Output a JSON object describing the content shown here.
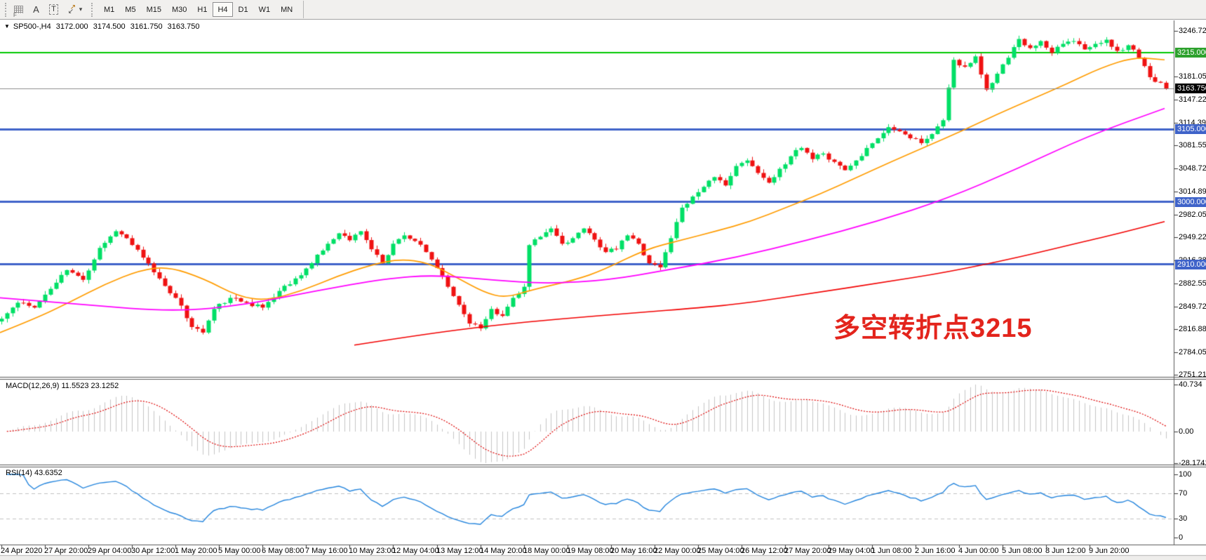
{
  "toolbar": {
    "timeframes": [
      "M1",
      "M5",
      "M15",
      "M30",
      "H1",
      "H4",
      "D1",
      "W1",
      "MN"
    ],
    "active_timeframe": "H4",
    "tool_icons": [
      {
        "name": "grid-f-icon",
        "glyph": "F"
      },
      {
        "name": "text-label-icon",
        "glyph": "A"
      },
      {
        "name": "text-box-icon",
        "glyph": "T"
      },
      {
        "name": "arrows-tool-icon",
        "glyph": "↗↙"
      },
      {
        "name": "dropdown-arrow-icon",
        "glyph": "▾"
      }
    ]
  },
  "chart": {
    "title": {
      "dropdown_glyph": "▼",
      "symbol_period": "SP500-,H4",
      "open": "3172.000",
      "high": "3174.500",
      "low": "3161.750",
      "close": "3163.750"
    },
    "macd_label": {
      "name": "MACD(12,26,9)",
      "main": "11.5523",
      "signal": "23.1252"
    },
    "rsi_label": {
      "name": "RSI(14)",
      "value": "43.6352"
    },
    "annotation": {
      "text": "多空转折点3215",
      "color": "#e3241c"
    }
  },
  "chart_data": {
    "type": "candlestick",
    "symbol": "SP500-",
    "period": "H4",
    "current_bar": {
      "open": 3172.0,
      "high": 3174.5,
      "low": 3161.75,
      "close": 3163.75
    },
    "price_axis": {
      "min": 2751.215,
      "max": 3246.725,
      "ticks": [
        "3246.725",
        "3181.055",
        "3147.225",
        "3114.390",
        "3081.555",
        "3048.720",
        "3014.890",
        "2982.055",
        "2949.220",
        "2916.385",
        "2882.555",
        "2849.720",
        "2816.885",
        "2784.050",
        "2751.215"
      ]
    },
    "time_axis": {
      "labels": [
        "24 Apr 2020",
        "27 Apr 20:00",
        "29 Apr 04:00",
        "30 Apr 12:00",
        "1 May 20:00",
        "5 May 00:00",
        "6 May 08:00",
        "7 May 16:00",
        "10 May 23:00",
        "12 May 04:00",
        "13 May 12:00",
        "14 May 20:00",
        "18 May 00:00",
        "19 May 08:00",
        "20 May 16:00",
        "22 May 00:00",
        "25 May 04:00",
        "26 May 12:00",
        "27 May 20:00",
        "29 May 04:00",
        "1 Jun 08:00",
        "2 Jun 16:00",
        "4 Jun 00:00",
        "5 Jun 08:00",
        "8 Jun 12:00",
        "9 Jun 20:00"
      ]
    },
    "levels": [
      {
        "price": 3215.0,
        "label": "3215.000",
        "line_color": "#00c800",
        "badge_bg": "#2da12d",
        "width": 2
      },
      {
        "price": 3163.75,
        "label": "3163.750",
        "line_color": "#8c8c8c",
        "badge_bg": "#000000",
        "width": 1
      },
      {
        "price": 3105.0,
        "label": "3105.000",
        "line_color": "#3f63c9",
        "badge_bg": "#3f63c9",
        "width": 3
      },
      {
        "price": 3000.0,
        "label": "3000.000",
        "line_color": "#3f63c9",
        "badge_bg": "#3f63c9",
        "width": 3
      },
      {
        "price": 2910.0,
        "label": "2910.000",
        "line_color": "#3f63c9",
        "badge_bg": "#3f63c9",
        "width": 3
      }
    ],
    "candles": {
      "count": 215,
      "up_color": "#00df66",
      "down_color": "#ef1212",
      "close_anchors": [
        [
          0,
          2832
        ],
        [
          3,
          2855
        ],
        [
          6,
          2848
        ],
        [
          9,
          2875
        ],
        [
          12,
          2902
        ],
        [
          15,
          2888
        ],
        [
          18,
          2934
        ],
        [
          21,
          2958
        ],
        [
          23,
          2948
        ],
        [
          26,
          2920
        ],
        [
          29,
          2890
        ],
        [
          32,
          2862
        ],
        [
          35,
          2820
        ],
        [
          37,
          2812
        ],
        [
          39,
          2846
        ],
        [
          42,
          2862
        ],
        [
          45,
          2855
        ],
        [
          48,
          2848
        ],
        [
          51,
          2872
        ],
        [
          54,
          2890
        ],
        [
          57,
          2912
        ],
        [
          60,
          2940
        ],
        [
          62,
          2955
        ],
        [
          64,
          2945
        ],
        [
          66,
          2958
        ],
        [
          68,
          2932
        ],
        [
          70,
          2912
        ],
        [
          72,
          2940
        ],
        [
          74,
          2952
        ],
        [
          76,
          2944
        ],
        [
          78,
          2928
        ],
        [
          80,
          2905
        ],
        [
          82,
          2878
        ],
        [
          84,
          2852
        ],
        [
          86,
          2825
        ],
        [
          88,
          2818
        ],
        [
          90,
          2846
        ],
        [
          92,
          2836
        ],
        [
          94,
          2862
        ],
        [
          96,
          2878
        ],
        [
          97,
          2938
        ],
        [
          99,
          2950
        ],
        [
          101,
          2962
        ],
        [
          103,
          2940
        ],
        [
          105,
          2948
        ],
        [
          107,
          2962
        ],
        [
          109,
          2946
        ],
        [
          111,
          2928
        ],
        [
          113,
          2932
        ],
        [
          115,
          2952
        ],
        [
          117,
          2940
        ],
        [
          119,
          2912
        ],
        [
          121,
          2906
        ],
        [
          123,
          2948
        ],
        [
          125,
          2992
        ],
        [
          127,
          3008
        ],
        [
          129,
          3022
        ],
        [
          131,
          3036
        ],
        [
          133,
          3024
        ],
        [
          135,
          3052
        ],
        [
          137,
          3060
        ],
        [
          139,
          3042
        ],
        [
          141,
          3028
        ],
        [
          143,
          3048
        ],
        [
          145,
          3066
        ],
        [
          147,
          3078
        ],
        [
          149,
          3062
        ],
        [
          151,
          3070
        ],
        [
          153,
          3058
        ],
        [
          155,
          3046
        ],
        [
          157,
          3060
        ],
        [
          159,
          3078
        ],
        [
          161,
          3092
        ],
        [
          163,
          3108
        ],
        [
          165,
          3102
        ],
        [
          167,
          3092
        ],
        [
          169,
          3085
        ],
        [
          171,
          3098
        ],
        [
          173,
          3118
        ],
        [
          174,
          3165
        ],
        [
          175,
          3205
        ],
        [
          177,
          3195
        ],
        [
          179,
          3210
        ],
        [
          181,
          3162
        ],
        [
          183,
          3185
        ],
        [
          185,
          3208
        ],
        [
          187,
          3235
        ],
        [
          189,
          3222
        ],
        [
          191,
          3232
        ],
        [
          193,
          3215
        ],
        [
          195,
          3228
        ],
        [
          197,
          3232
        ],
        [
          199,
          3220
        ],
        [
          201,
          3228
        ],
        [
          203,
          3234
        ],
        [
          205,
          3218
        ],
        [
          207,
          3226
        ],
        [
          209,
          3208
        ],
        [
          210,
          3196
        ],
        [
          211,
          3180
        ],
        [
          213,
          3172
        ],
        [
          214,
          3163.75
        ]
      ]
    },
    "moving_averages": [
      {
        "name": "ma-orange",
        "color": "#ff9c00",
        "width": 1.7,
        "points": [
          [
            0,
            2812
          ],
          [
            50,
            2832
          ],
          [
            100,
            2856
          ],
          [
            150,
            2882
          ],
          [
            200,
            2902
          ],
          [
            240,
            2907
          ],
          [
            290,
            2890
          ],
          [
            340,
            2864
          ],
          [
            380,
            2858
          ],
          [
            430,
            2872
          ],
          [
            480,
            2893
          ],
          [
            530,
            2910
          ],
          [
            570,
            2918
          ],
          [
            610,
            2913
          ],
          [
            650,
            2892
          ],
          [
            690,
            2870
          ],
          [
            720,
            2862
          ],
          [
            760,
            2874
          ],
          [
            820,
            2888
          ],
          [
            860,
            2902
          ],
          [
            920,
            2932
          ],
          [
            970,
            2945
          ],
          [
            1020,
            2958
          ],
          [
            1070,
            2972
          ],
          [
            1120,
            2992
          ],
          [
            1170,
            3012
          ],
          [
            1220,
            3035
          ],
          [
            1270,
            3058
          ],
          [
            1320,
            3080
          ],
          [
            1370,
            3102
          ],
          [
            1420,
            3126
          ],
          [
            1470,
            3148
          ],
          [
            1520,
            3170
          ],
          [
            1570,
            3194
          ],
          [
            1617,
            3209
          ],
          [
            1660,
            3205
          ]
        ]
      },
      {
        "name": "ma-magenta",
        "color": "#ff00ff",
        "width": 1.8,
        "points": [
          [
            0,
            2862
          ],
          [
            120,
            2852
          ],
          [
            250,
            2842
          ],
          [
            350,
            2852
          ],
          [
            450,
            2872
          ],
          [
            550,
            2890
          ],
          [
            620,
            2895
          ],
          [
            700,
            2888
          ],
          [
            780,
            2882
          ],
          [
            870,
            2888
          ],
          [
            950,
            2902
          ],
          [
            1050,
            2920
          ],
          [
            1150,
            2945
          ],
          [
            1250,
            2972
          ],
          [
            1350,
            3005
          ],
          [
            1450,
            3048
          ],
          [
            1550,
            3095
          ],
          [
            1660,
            3135
          ]
        ]
      },
      {
        "name": "ma-red",
        "color": "#f20000",
        "width": 1.6,
        "points": [
          [
            505,
            2794
          ],
          [
            600,
            2809
          ],
          [
            700,
            2822
          ],
          [
            800,
            2832
          ],
          [
            900,
            2840
          ],
          [
            1000,
            2848
          ],
          [
            1060,
            2854
          ],
          [
            1160,
            2869
          ],
          [
            1257,
            2884
          ],
          [
            1350,
            2899
          ],
          [
            1450,
            2920
          ],
          [
            1540,
            2942
          ],
          [
            1600,
            2956
          ],
          [
            1660,
            2972
          ]
        ]
      }
    ],
    "macd": {
      "params": [
        12,
        26,
        9
      ],
      "main_value": 11.5523,
      "signal_value": 23.1252,
      "axis": [
        "40.734",
        "0.00",
        "-28.1741"
      ],
      "histogram_color": "#c4c4c4",
      "signal_color": "#dd0000"
    },
    "rsi": {
      "period": 14,
      "value": 43.6352,
      "axis": [
        "100",
        "70",
        "30",
        "0"
      ],
      "levels": [
        70,
        30
      ],
      "color": "#2585dd",
      "level_line_color": "#c0c0c0"
    }
  }
}
